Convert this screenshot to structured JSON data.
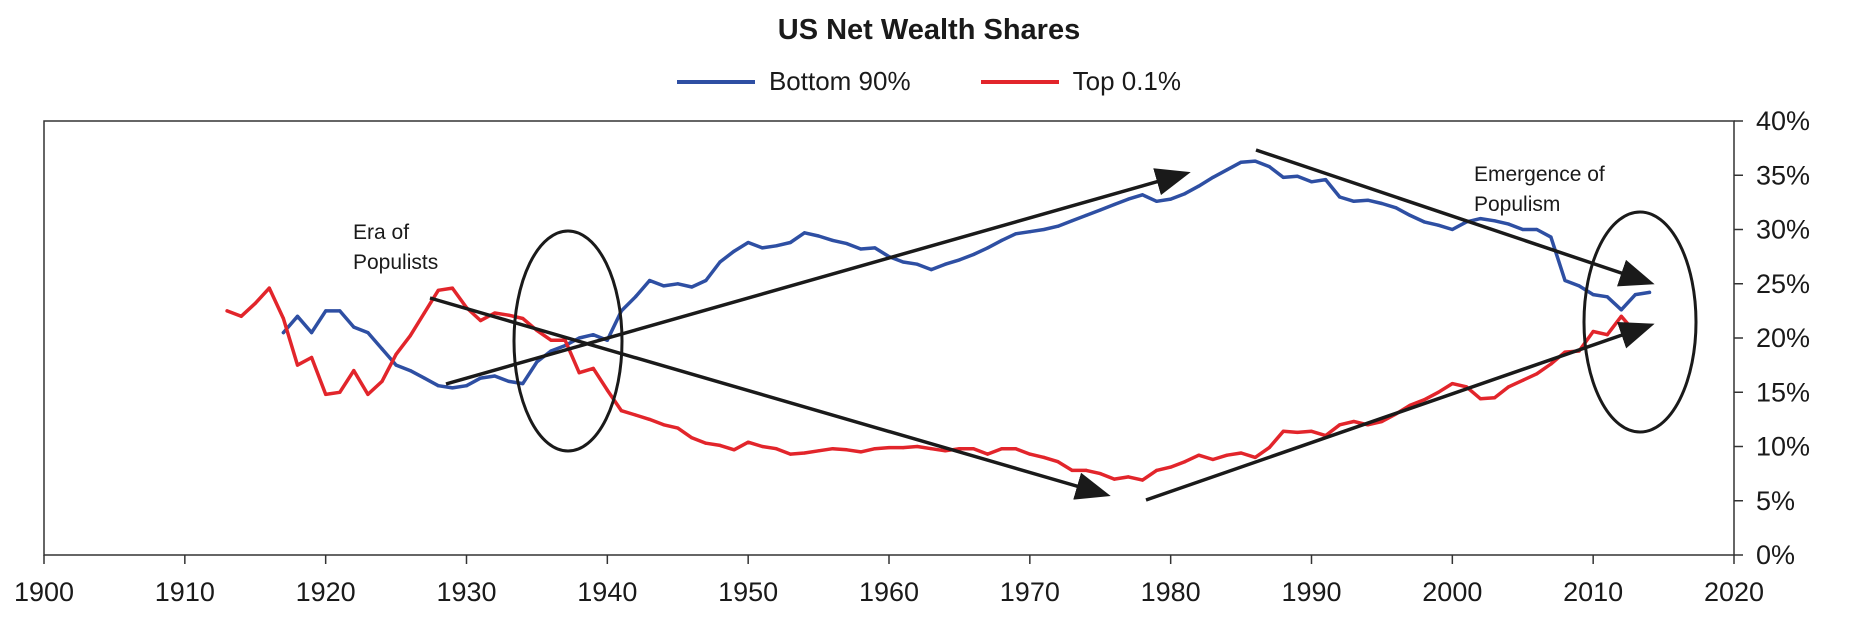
{
  "chart_data": {
    "type": "line",
    "title": "US Net Wealth Shares",
    "xlabel": "",
    "ylabel": "",
    "xlim": [
      1900,
      2020
    ],
    "ylim": [
      0,
      40
    ],
    "x_ticks": [
      "1900",
      "1910",
      "1920",
      "1930",
      "1940",
      "1950",
      "1960",
      "1970",
      "1980",
      "1990",
      "2000",
      "2010",
      "2020"
    ],
    "y_ticks": [
      "0%",
      "5%",
      "10%",
      "15%",
      "20%",
      "25%",
      "30%",
      "35%",
      "40%"
    ],
    "y_axis_side": "right",
    "legend_position": "top-center",
    "grid": false,
    "series": [
      {
        "name": "Bottom 90%",
        "color": "#2e4fa3",
        "points": [
          [
            1917,
            20.5
          ],
          [
            1918,
            22.0
          ],
          [
            1919,
            20.5
          ],
          [
            1920,
            22.5
          ],
          [
            1921,
            22.5
          ],
          [
            1922,
            21.0
          ],
          [
            1923,
            20.5
          ],
          [
            1924,
            19.0
          ],
          [
            1925,
            17.5
          ],
          [
            1926,
            17.0
          ],
          [
            1927,
            16.3
          ],
          [
            1928,
            15.6
          ],
          [
            1929,
            15.4
          ],
          [
            1930,
            15.6
          ],
          [
            1931,
            16.3
          ],
          [
            1932,
            16.5
          ],
          [
            1933,
            16.0
          ],
          [
            1934,
            15.8
          ],
          [
            1935,
            17.8
          ],
          [
            1936,
            18.8
          ],
          [
            1937,
            19.3
          ],
          [
            1938,
            20.0
          ],
          [
            1939,
            20.3
          ],
          [
            1940,
            19.8
          ],
          [
            1941,
            22.5
          ],
          [
            1942,
            23.8
          ],
          [
            1943,
            25.3
          ],
          [
            1944,
            24.8
          ],
          [
            1945,
            25.0
          ],
          [
            1946,
            24.7
          ],
          [
            1947,
            25.3
          ],
          [
            1948,
            27.0
          ],
          [
            1949,
            28.0
          ],
          [
            1950,
            28.8
          ],
          [
            1951,
            28.3
          ],
          [
            1952,
            28.5
          ],
          [
            1953,
            28.8
          ],
          [
            1954,
            29.7
          ],
          [
            1955,
            29.4
          ],
          [
            1956,
            29.0
          ],
          [
            1957,
            28.7
          ],
          [
            1958,
            28.2
          ],
          [
            1959,
            28.3
          ],
          [
            1960,
            27.5
          ],
          [
            1961,
            27.0
          ],
          [
            1962,
            26.8
          ],
          [
            1963,
            26.3
          ],
          [
            1964,
            26.8
          ],
          [
            1965,
            27.2
          ],
          [
            1966,
            27.7
          ],
          [
            1967,
            28.3
          ],
          [
            1968,
            29.0
          ],
          [
            1969,
            29.6
          ],
          [
            1970,
            29.8
          ],
          [
            1971,
            30.0
          ],
          [
            1972,
            30.3
          ],
          [
            1973,
            30.8
          ],
          [
            1974,
            31.3
          ],
          [
            1975,
            31.8
          ],
          [
            1976,
            32.3
          ],
          [
            1977,
            32.8
          ],
          [
            1978,
            33.2
          ],
          [
            1979,
            32.6
          ],
          [
            1980,
            32.8
          ],
          [
            1981,
            33.3
          ],
          [
            1982,
            34.0
          ],
          [
            1983,
            34.8
          ],
          [
            1984,
            35.5
          ],
          [
            1985,
            36.2
          ],
          [
            1986,
            36.3
          ],
          [
            1987,
            35.8
          ],
          [
            1988,
            34.8
          ],
          [
            1989,
            34.9
          ],
          [
            1990,
            34.4
          ],
          [
            1991,
            34.6
          ],
          [
            1992,
            33.0
          ],
          [
            1993,
            32.6
          ],
          [
            1994,
            32.7
          ],
          [
            1995,
            32.4
          ],
          [
            1996,
            32.0
          ],
          [
            1997,
            31.3
          ],
          [
            1998,
            30.7
          ],
          [
            1999,
            30.4
          ],
          [
            2000,
            30.0
          ],
          [
            2001,
            30.7
          ],
          [
            2002,
            31.0
          ],
          [
            2003,
            30.8
          ],
          [
            2004,
            30.5
          ],
          [
            2005,
            30.0
          ],
          [
            2006,
            30.0
          ],
          [
            2007,
            29.3
          ],
          [
            2008,
            25.3
          ],
          [
            2009,
            24.8
          ],
          [
            2010,
            24.0
          ],
          [
            2011,
            23.8
          ],
          [
            2012,
            22.6
          ],
          [
            2013,
            24.0
          ],
          [
            2014,
            24.2
          ]
        ]
      },
      {
        "name": "Top 0.1%",
        "color": "#e2252b",
        "points": [
          [
            1913,
            22.5
          ],
          [
            1914,
            22.0
          ],
          [
            1915,
            23.2
          ],
          [
            1916,
            24.6
          ],
          [
            1917,
            21.8
          ],
          [
            1918,
            17.5
          ],
          [
            1919,
            18.2
          ],
          [
            1920,
            14.8
          ],
          [
            1921,
            15.0
          ],
          [
            1922,
            17.0
          ],
          [
            1923,
            14.8
          ],
          [
            1924,
            16.0
          ],
          [
            1925,
            18.5
          ],
          [
            1926,
            20.2
          ],
          [
            1927,
            22.3
          ],
          [
            1928,
            24.4
          ],
          [
            1929,
            24.6
          ],
          [
            1930,
            22.8
          ],
          [
            1931,
            21.6
          ],
          [
            1932,
            22.3
          ],
          [
            1933,
            22.1
          ],
          [
            1934,
            21.8
          ],
          [
            1935,
            20.7
          ],
          [
            1936,
            19.8
          ],
          [
            1937,
            19.8
          ],
          [
            1938,
            16.8
          ],
          [
            1939,
            17.2
          ],
          [
            1940,
            15.2
          ],
          [
            1941,
            13.3
          ],
          [
            1942,
            12.9
          ],
          [
            1943,
            12.5
          ],
          [
            1944,
            12.0
          ],
          [
            1945,
            11.7
          ],
          [
            1946,
            10.8
          ],
          [
            1947,
            10.3
          ],
          [
            1948,
            10.1
          ],
          [
            1949,
            9.7
          ],
          [
            1950,
            10.4
          ],
          [
            1951,
            10.0
          ],
          [
            1952,
            9.8
          ],
          [
            1953,
            9.3
          ],
          [
            1954,
            9.4
          ],
          [
            1955,
            9.6
          ],
          [
            1956,
            9.8
          ],
          [
            1957,
            9.7
          ],
          [
            1958,
            9.5
          ],
          [
            1959,
            9.8
          ],
          [
            1960,
            9.9
          ],
          [
            1961,
            9.9
          ],
          [
            1962,
            10.0
          ],
          [
            1963,
            9.8
          ],
          [
            1964,
            9.6
          ],
          [
            1965,
            9.8
          ],
          [
            1966,
            9.8
          ],
          [
            1967,
            9.3
          ],
          [
            1968,
            9.8
          ],
          [
            1969,
            9.8
          ],
          [
            1970,
            9.3
          ],
          [
            1971,
            9.0
          ],
          [
            1972,
            8.6
          ],
          [
            1973,
            7.8
          ],
          [
            1974,
            7.8
          ],
          [
            1975,
            7.5
          ],
          [
            1976,
            7.0
          ],
          [
            1977,
            7.2
          ],
          [
            1978,
            6.9
          ],
          [
            1979,
            7.8
          ],
          [
            1980,
            8.1
          ],
          [
            1981,
            8.6
          ],
          [
            1982,
            9.2
          ],
          [
            1983,
            8.8
          ],
          [
            1984,
            9.2
          ],
          [
            1985,
            9.4
          ],
          [
            1986,
            9.0
          ],
          [
            1987,
            9.9
          ],
          [
            1988,
            11.4
          ],
          [
            1989,
            11.3
          ],
          [
            1990,
            11.4
          ],
          [
            1991,
            11.0
          ],
          [
            1992,
            12.0
          ],
          [
            1993,
            12.3
          ],
          [
            1994,
            12.0
          ],
          [
            1995,
            12.3
          ],
          [
            1996,
            13.0
          ],
          [
            1997,
            13.8
          ],
          [
            1998,
            14.3
          ],
          [
            1999,
            15.0
          ],
          [
            2000,
            15.8
          ],
          [
            2001,
            15.5
          ],
          [
            2002,
            14.4
          ],
          [
            2003,
            14.5
          ],
          [
            2004,
            15.5
          ],
          [
            2005,
            16.1
          ],
          [
            2006,
            16.7
          ],
          [
            2007,
            17.6
          ],
          [
            2008,
            18.7
          ],
          [
            2009,
            18.8
          ],
          [
            2010,
            20.6
          ],
          [
            2011,
            20.3
          ],
          [
            2012,
            22.0
          ],
          [
            2013,
            20.5
          ]
        ]
      }
    ],
    "annotations": [
      {
        "text": [
          "Era of",
          "Populists"
        ]
      },
      {
        "text": [
          "Emergence of",
          "Populism"
        ]
      }
    ]
  }
}
